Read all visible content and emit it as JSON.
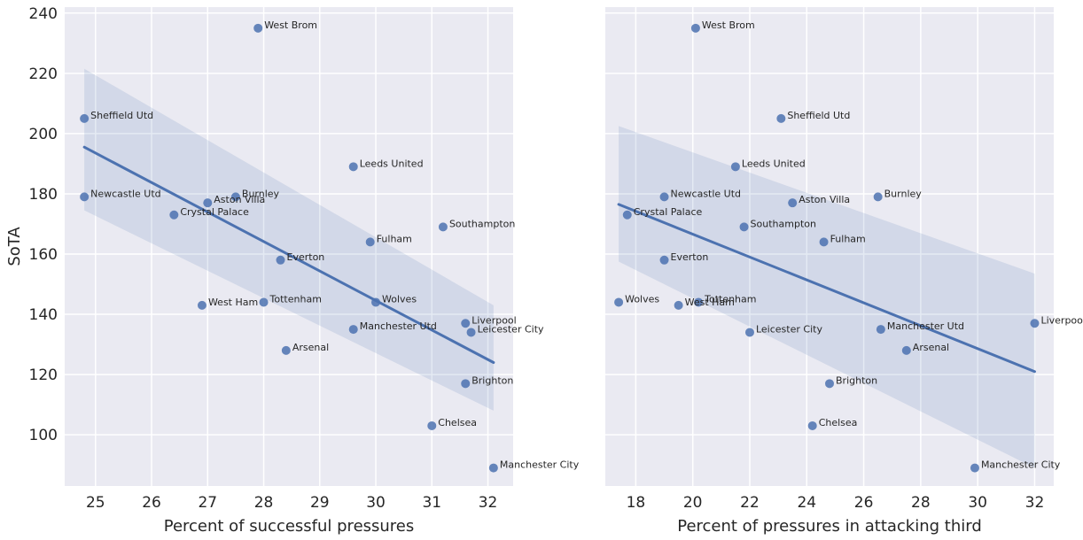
{
  "colors": {
    "background": "#EAEAF2",
    "grid": "#FFFFFF",
    "point": "#4C72B0",
    "line": "#4C72B0",
    "band": "#4C72B0"
  },
  "chart_data": [
    {
      "type": "scatter",
      "title": "",
      "xlabel": "Percent of successful pressures",
      "ylabel": "SoTA",
      "xlim": [
        24.45,
        32.45
      ],
      "ylim": [
        83,
        242
      ],
      "xticks": [
        25,
        26,
        27,
        28,
        29,
        30,
        31,
        32
      ],
      "yticks": [
        100,
        120,
        140,
        160,
        180,
        200,
        220,
        240
      ],
      "grid": true,
      "points": [
        {
          "label": "West Brom",
          "x": 27.9,
          "y": 235
        },
        {
          "label": "Sheffield Utd",
          "x": 24.8,
          "y": 205
        },
        {
          "label": "Leeds United",
          "x": 29.6,
          "y": 189
        },
        {
          "label": "Newcastle Utd",
          "x": 24.8,
          "y": 179
        },
        {
          "label": "Burnley",
          "x": 27.5,
          "y": 179
        },
        {
          "label": "Aston Villa",
          "x": 27.0,
          "y": 177
        },
        {
          "label": "Crystal Palace",
          "x": 26.4,
          "y": 173
        },
        {
          "label": "Southampton",
          "x": 31.2,
          "y": 169
        },
        {
          "label": "Fulham",
          "x": 29.9,
          "y": 164
        },
        {
          "label": "Everton",
          "x": 28.3,
          "y": 158
        },
        {
          "label": "Tottenham",
          "x": 28.0,
          "y": 144
        },
        {
          "label": "Wolves",
          "x": 30.0,
          "y": 144
        },
        {
          "label": "West Ham",
          "x": 26.9,
          "y": 143
        },
        {
          "label": "Liverpool",
          "x": 31.6,
          "y": 137
        },
        {
          "label": "Manchester Utd",
          "x": 29.6,
          "y": 135
        },
        {
          "label": "Leicester City",
          "x": 31.7,
          "y": 134
        },
        {
          "label": "Arsenal",
          "x": 28.4,
          "y": 128
        },
        {
          "label": "Brighton",
          "x": 31.6,
          "y": 117
        },
        {
          "label": "Chelsea",
          "x": 31.0,
          "y": 103
        },
        {
          "label": "Manchester City",
          "x": 32.1,
          "y": 89
        }
      ],
      "regression": {
        "x": [
          24.8,
          32.1
        ],
        "y": [
          195.5,
          124
        ],
        "ci_upper": [
          221.5,
          143
        ],
        "ci_lower": [
          174.5,
          108
        ]
      }
    },
    {
      "type": "scatter",
      "title": "",
      "xlabel": "Percent of pressures in attacking third",
      "ylabel": "",
      "xlim": [
        16.93,
        32.67
      ],
      "ylim": [
        83,
        242
      ],
      "xticks": [
        18,
        20,
        22,
        24,
        26,
        28,
        30,
        32
      ],
      "yticks": [
        100,
        120,
        140,
        160,
        180,
        200,
        220,
        240
      ],
      "grid": true,
      "points": [
        {
          "label": "West Brom",
          "x": 20.1,
          "y": 235
        },
        {
          "label": "Sheffield Utd",
          "x": 23.1,
          "y": 205
        },
        {
          "label": "Leeds United",
          "x": 21.5,
          "y": 189
        },
        {
          "label": "Newcastle Utd",
          "x": 19.0,
          "y": 179
        },
        {
          "label": "Burnley",
          "x": 26.5,
          "y": 179
        },
        {
          "label": "Aston Villa",
          "x": 23.5,
          "y": 177
        },
        {
          "label": "Crystal Palace",
          "x": 17.7,
          "y": 173
        },
        {
          "label": "Southampton",
          "x": 21.8,
          "y": 169
        },
        {
          "label": "Fulham",
          "x": 24.6,
          "y": 164
        },
        {
          "label": "Everton",
          "x": 19.0,
          "y": 158
        },
        {
          "label": "Wolves",
          "x": 17.4,
          "y": 144
        },
        {
          "label": "Tottenham",
          "x": 20.2,
          "y": 144
        },
        {
          "label": "West Ham",
          "x": 19.5,
          "y": 143
        },
        {
          "label": "Liverpool",
          "x": 32.0,
          "y": 137
        },
        {
          "label": "Manchester Utd",
          "x": 26.6,
          "y": 135
        },
        {
          "label": "Leicester City",
          "x": 22.0,
          "y": 134
        },
        {
          "label": "Arsenal",
          "x": 27.5,
          "y": 128
        },
        {
          "label": "Brighton",
          "x": 24.8,
          "y": 117
        },
        {
          "label": "Chelsea",
          "x": 24.2,
          "y": 103
        },
        {
          "label": "Manchester City",
          "x": 29.9,
          "y": 89
        }
      ],
      "regression": {
        "x": [
          17.4,
          32.0
        ],
        "y": [
          176.5,
          121
        ],
        "ci_upper": [
          202.5,
          153.5
        ],
        "ci_lower": [
          157.5,
          89
        ]
      }
    }
  ]
}
